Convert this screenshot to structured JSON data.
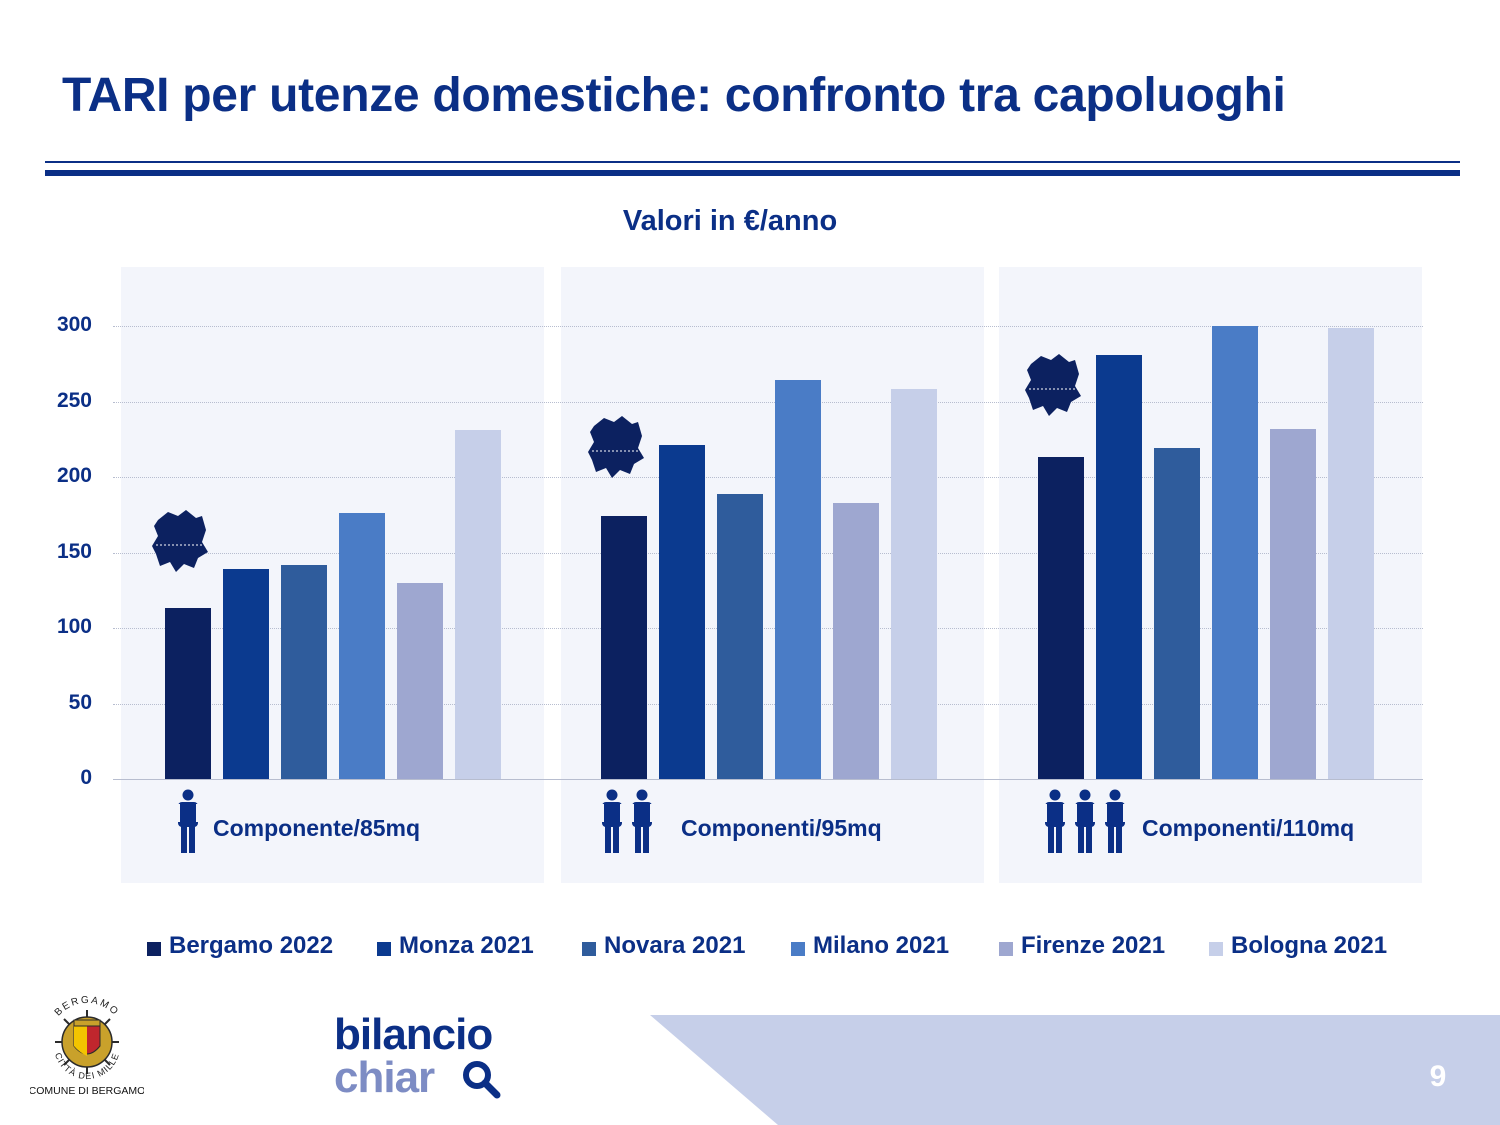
{
  "title": "TARI per utenze domestiche: confronto tra capoluoghi",
  "colors": {
    "title": "#0b2f86",
    "panel_bg": "#f3f5fb",
    "footer_shape": "#c6cfe9"
  },
  "chart_data": {
    "type": "bar",
    "title": "Valori in €/anno",
    "xlabel": "",
    "ylabel": "",
    "ylim": [
      0,
      330
    ],
    "yticks": [
      0,
      50,
      100,
      150,
      200,
      250,
      300
    ],
    "grid": true,
    "legend_position": "bottom",
    "categories": [
      "Componente/85mq",
      "Componenti/95mq",
      "Componenti/110mq"
    ],
    "category_icons": [
      "person-icon",
      "person-icon",
      "person-icon"
    ],
    "category_person_counts": [
      1,
      2,
      3
    ],
    "series": [
      {
        "name": "Bergamo 2022",
        "color": "#0c2160",
        "values": [
          113,
          174,
          213
        ]
      },
      {
        "name": "Monza 2021",
        "color": "#0b3a8f",
        "values": [
          139,
          221,
          281
        ]
      },
      {
        "name": "Novara 2021",
        "color": "#2f5c9c",
        "values": [
          142,
          189,
          219
        ]
      },
      {
        "name": "Milano 2021",
        "color": "#4a7cc6",
        "values": [
          176,
          264,
          300
        ]
      },
      {
        "name": "Firenze 2021",
        "color": "#9ea7d0",
        "values": [
          130,
          183,
          232
        ]
      },
      {
        "name": "Bologna 2021",
        "color": "#c6cfe9",
        "values": [
          231,
          258,
          299
        ]
      }
    ],
    "annotations": [
      "bergamo-map-icon marks the Bergamo bar in each group"
    ]
  },
  "footer": {
    "logo_label": "COMUNE DI BERGAMO",
    "emblem_top_text": "BERGAMO",
    "emblem_bottom_text": "CITTÀ DEI MILLE",
    "brand_line1": "bilancio",
    "brand_line2": "chiar",
    "brand_icon": "magnifier-icon",
    "page_number": "9"
  }
}
